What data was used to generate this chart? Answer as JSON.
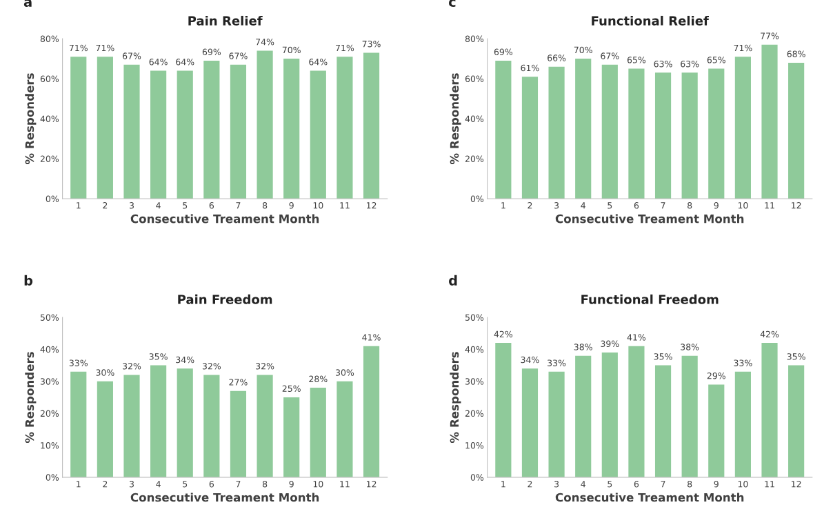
{
  "chart_data": [
    {
      "type": "bar",
      "title": "Pain Relief",
      "xlabel": "Consecutive Treament Month",
      "ylabel": "% Responders",
      "annotations": [
        "a"
      ],
      "categories": [
        "1",
        "2",
        "3",
        "4",
        "5",
        "6",
        "7",
        "8",
        "9",
        "10",
        "11",
        "12"
      ],
      "values": [
        71,
        71,
        67,
        64,
        64,
        69,
        67,
        74,
        70,
        64,
        71,
        73
      ],
      "value_labels": [
        "71%",
        "71%",
        "67%",
        "64%",
        "64%",
        "69%",
        "67%",
        "74%",
        "70%",
        "64%",
        "71%",
        "73%"
      ],
      "color": "#8fca9a",
      "ylim": [
        0,
        80
      ],
      "yticks": [
        {
          "value": 0,
          "label": "0%"
        },
        {
          "value": 20,
          "label": "20%"
        },
        {
          "value": 40,
          "label": "40%"
        },
        {
          "value": 60,
          "label": "60%"
        },
        {
          "value": 80,
          "label": "80%"
        }
      ],
      "grid": false,
      "legend": false
    },
    {
      "type": "bar",
      "title": "Functional Relief",
      "xlabel": "Consecutive Treament Month",
      "ylabel": "% Responders",
      "annotations": [
        "c"
      ],
      "categories": [
        "1",
        "2",
        "3",
        "4",
        "5",
        "6",
        "7",
        "8",
        "9",
        "10",
        "11",
        "12"
      ],
      "values": [
        69,
        61,
        66,
        70,
        67,
        65,
        63,
        63,
        65,
        71,
        77,
        68
      ],
      "value_labels": [
        "69%",
        "61%",
        "66%",
        "70%",
        "67%",
        "65%",
        "63%",
        "63%",
        "65%",
        "71%",
        "77%",
        "68%"
      ],
      "color": "#8fca9a",
      "ylim": [
        0,
        80
      ],
      "yticks": [
        {
          "value": 0,
          "label": "0%"
        },
        {
          "value": 20,
          "label": "20%"
        },
        {
          "value": 40,
          "label": "40%"
        },
        {
          "value": 60,
          "label": "60%"
        },
        {
          "value": 80,
          "label": "80%"
        }
      ],
      "grid": false,
      "legend": false
    },
    {
      "type": "bar",
      "title": "Pain Freedom",
      "xlabel": "Consecutive Treament Month",
      "ylabel": "% Responders",
      "annotations": [
        "b"
      ],
      "categories": [
        "1",
        "2",
        "3",
        "4",
        "5",
        "6",
        "7",
        "8",
        "9",
        "10",
        "11",
        "12"
      ],
      "values": [
        33,
        30,
        32,
        35,
        34,
        32,
        27,
        32,
        25,
        28,
        30,
        41
      ],
      "value_labels": [
        "33%",
        "30%",
        "32%",
        "35%",
        "34%",
        "32%",
        "27%",
        "32%",
        "25%",
        "28%",
        "30%",
        "41%"
      ],
      "color": "#8fca9a",
      "ylim": [
        0,
        50
      ],
      "yticks": [
        {
          "value": 0,
          "label": "0%"
        },
        {
          "value": 10,
          "label": "10%"
        },
        {
          "value": 20,
          "label": "20%"
        },
        {
          "value": 30,
          "label": "30%"
        },
        {
          "value": 40,
          "label": "40%"
        },
        {
          "value": 50,
          "label": "50%"
        }
      ],
      "grid": false,
      "legend": false
    },
    {
      "type": "bar",
      "title": "Functional Freedom",
      "xlabel": "Consecutive Treament Month",
      "ylabel": "% Responders",
      "annotations": [
        "d"
      ],
      "categories": [
        "1",
        "2",
        "3",
        "4",
        "5",
        "6",
        "7",
        "8",
        "9",
        "10",
        "11",
        "12"
      ],
      "values": [
        42,
        34,
        33,
        38,
        39,
        41,
        35,
        38,
        29,
        33,
        42,
        35
      ],
      "value_labels": [
        "42%",
        "34%",
        "33%",
        "38%",
        "39%",
        "41%",
        "35%",
        "38%",
        "29%",
        "33%",
        "42%",
        "35%"
      ],
      "color": "#8fca9a",
      "ylim": [
        0,
        50
      ],
      "yticks": [
        {
          "value": 0,
          "label": "0%"
        },
        {
          "value": 10,
          "label": "10%"
        },
        {
          "value": 20,
          "label": "20%"
        },
        {
          "value": 30,
          "label": "30%"
        },
        {
          "value": 40,
          "label": "40%"
        },
        {
          "value": 50,
          "label": "50%"
        }
      ],
      "grid": false,
      "legend": false
    }
  ]
}
